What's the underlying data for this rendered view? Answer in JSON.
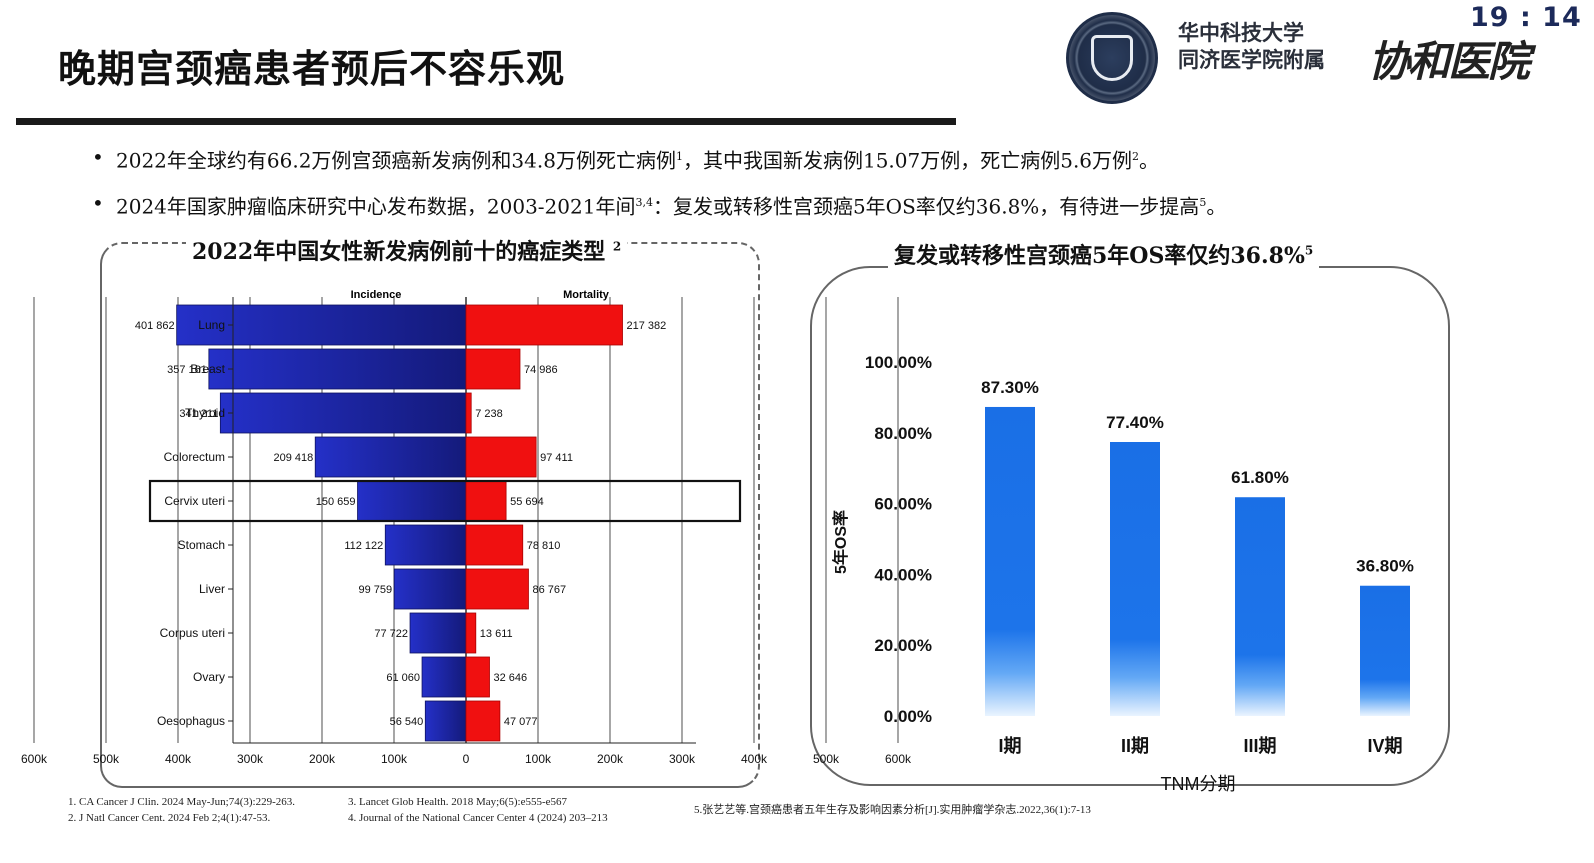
{
  "header": {
    "title": "晚期宫颈癌患者预后不容乐观",
    "org_line1": "华中科技大学",
    "org_line2": "同济医学院附属",
    "brand": "协和医院",
    "clock": "19 : 14"
  },
  "bullets": [
    {
      "text": "2022年全球约有66.2万例宫颈癌新发病例和34.8万例死亡病例",
      "ref": "1",
      "text2": "，其中我国新发病例15.07万例，死亡病例5.6万例",
      "ref2": "2",
      "tail": "。"
    },
    {
      "text": "2024年国家肿瘤临床研究中心发布数据，2003-2021年间",
      "ref": "3,4",
      "text2": "：复发或转移性宫颈癌5年OS率仅约36.8%，有待进一步提高",
      "ref2": "5",
      "tail": "。"
    }
  ],
  "chart_data": [
    {
      "type": "bar",
      "orientation": "horizontal-butterfly",
      "title": "2022年中国女性新发病例前十的癌症类型",
      "title_ref": "2",
      "left_label": "Incidence",
      "right_label": "Mortality",
      "categories": [
        "Lung",
        "Breast",
        "Thyroid",
        "Colorectum",
        "Cervix uteri",
        "Stomach",
        "Liver",
        "Corpus uteri",
        "Ovary",
        "Oesophagus"
      ],
      "series": [
        {
          "name": "Incidence",
          "color": "#1e22a8",
          "values": [
            401862,
            357161,
            341211,
            209418,
            150659,
            112122,
            99759,
            77722,
            61060,
            56540
          ]
        },
        {
          "name": "Mortality",
          "color": "#f01010",
          "values": [
            217382,
            74986,
            7238,
            97411,
            55694,
            78810,
            86767,
            13611,
            32646,
            47077
          ]
        }
      ],
      "value_labels_left": [
        "401 862",
        "357 161",
        "341 211",
        "209 418",
        "150 659",
        "112 122",
        "99 759",
        "77 722",
        "61 060",
        "56 540"
      ],
      "value_labels_right": [
        "217 382",
        "74 986",
        "7 238",
        "97 411",
        "55 694",
        "78 810",
        "86 767",
        "13 611",
        "32 646",
        "47 077"
      ],
      "x_ticks": [
        "600k",
        "500k",
        "400k",
        "300k",
        "200k",
        "100k",
        "0",
        "100k",
        "200k",
        "300k",
        "400k",
        "500k",
        "600k"
      ],
      "xlim": [
        -600000,
        600000
      ],
      "highlight": "Cervix uteri"
    },
    {
      "type": "bar",
      "title": "复发或转移性宫颈癌5年OS率仅约36.8%",
      "title_ref": "5",
      "categories": [
        "I期",
        "II期",
        "III期",
        "IV期"
      ],
      "values": [
        87.3,
        77.4,
        61.8,
        36.8
      ],
      "value_labels": [
        "87.30%",
        "77.40%",
        "61.80%",
        "36.80%"
      ],
      "xlabel": "TNM分期",
      "ylabel": "5年OS率",
      "y_ticks": [
        "0.00%",
        "20.00%",
        "40.00%",
        "60.00%",
        "80.00%",
        "100.00%"
      ],
      "ylim": [
        0,
        100
      ],
      "bar_color": "#1a6fe6"
    }
  ],
  "footnotes": {
    "col1": [
      "1. CA Cancer J Clin. 2024 May-Jun;74(3):229-263.",
      "2. J Natl Cancer Cent. 2024 Feb 2;4(1):47-53."
    ],
    "col2": [
      "3. Lancet Glob Health. 2018 May;6(5):e555-e567",
      "4. Journal of the National Cancer Center 4 (2024) 203–213"
    ],
    "col3": [
      "5.张艺艺等.宫颈癌患者五年生存及影响因素分析[J].实用肿瘤学杂志.2022,36(1):7-13"
    ]
  }
}
